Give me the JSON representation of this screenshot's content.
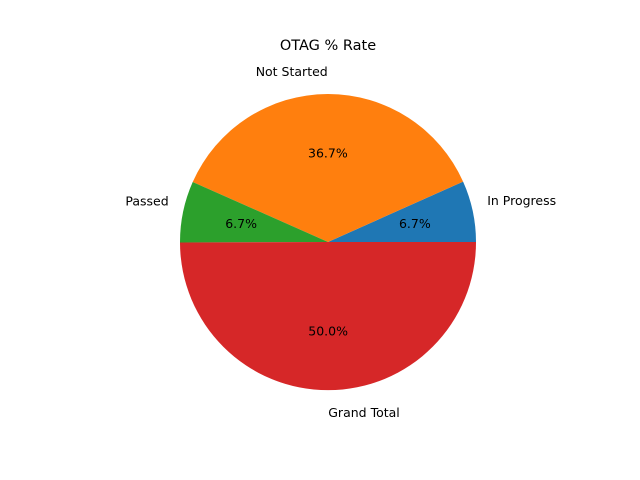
{
  "chart_data": {
    "type": "pie",
    "title": "OTAG % Rate",
    "labels": [
      "In Progress",
      "Not Started",
      "Passed",
      "Grand Total"
    ],
    "values": [
      6.7,
      36.7,
      6.7,
      50.0
    ],
    "percent_labels": [
      "6.7%",
      "36.7%",
      "6.7%",
      "50.0%"
    ],
    "colors": [
      "#1f77b4",
      "#ff7f0e",
      "#2ca02c",
      "#d62728"
    ],
    "start_angle_deg": 0,
    "direction": "counterclockwise",
    "legend": "none"
  }
}
